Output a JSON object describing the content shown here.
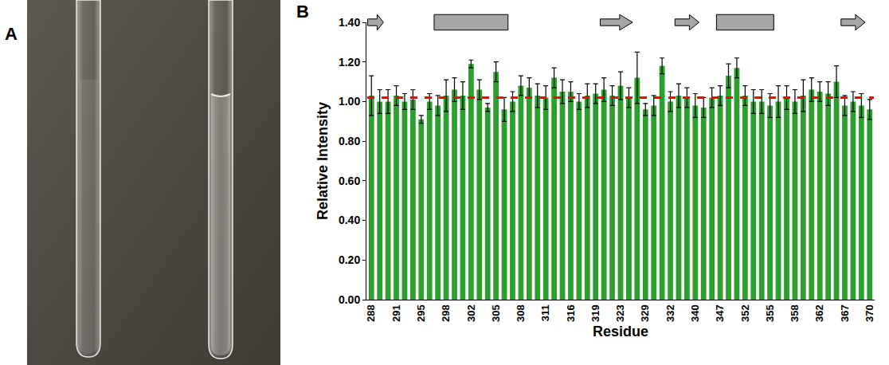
{
  "panel_labels": [
    "A",
    "B"
  ],
  "chart_data": {
    "type": "bar",
    "x_label": "Residue",
    "y_label": "Relative Intensity",
    "categories": [
      "288",
      null,
      null,
      "291",
      null,
      null,
      "295",
      null,
      null,
      "298",
      null,
      null,
      "302",
      null,
      null,
      "305",
      null,
      null,
      "308",
      null,
      null,
      "311",
      null,
      null,
      "316",
      null,
      null,
      "319",
      null,
      null,
      "323",
      null,
      null,
      "329",
      null,
      null,
      "332",
      null,
      null,
      "340",
      null,
      null,
      "347",
      null,
      null,
      "352",
      null,
      null,
      "355",
      null,
      null,
      "358",
      null,
      null,
      "362",
      null,
      null,
      "367",
      null,
      null,
      "370"
    ],
    "values": [
      1.03,
      1.0,
      1.0,
      1.03,
      1.0,
      1.01,
      0.91,
      1.0,
      0.98,
      1.03,
      1.06,
      1.03,
      1.19,
      1.06,
      0.97,
      1.15,
      0.96,
      1.0,
      1.08,
      1.07,
      1.03,
      1.02,
      1.12,
      1.05,
      1.05,
      1.0,
      1.03,
      1.04,
      1.06,
      1.03,
      1.08,
      1.02,
      1.12,
      0.96,
      0.98,
      1.18,
      1.0,
      1.03,
      1.02,
      0.98,
      0.97,
      1.02,
      1.03,
      1.13,
      1.17,
      1.03,
      1.0,
      1.0,
      0.98,
      1.0,
      1.02,
      1.0,
      1.03,
      1.06,
      1.05,
      1.04,
      1.1,
      0.98,
      1.0,
      0.98,
      0.96
    ],
    "errors": [
      0.1,
      0.06,
      0.06,
      0.05,
      0.04,
      0.05,
      0.02,
      0.04,
      0.05,
      0.08,
      0.06,
      0.07,
      0.02,
      0.05,
      0.02,
      0.05,
      0.06,
      0.05,
      0.05,
      0.05,
      0.06,
      0.06,
      0.05,
      0.06,
      0.05,
      0.04,
      0.06,
      0.05,
      0.06,
      0.05,
      0.07,
      0.05,
      0.13,
      0.03,
      0.05,
      0.04,
      0.05,
      0.06,
      0.05,
      0.06,
      0.05,
      0.05,
      0.05,
      0.06,
      0.05,
      0.05,
      0.06,
      0.06,
      0.06,
      0.08,
      0.06,
      0.06,
      0.08,
      0.06,
      0.05,
      0.06,
      0.08,
      0.05,
      0.05,
      0.06,
      0.05
    ],
    "color": "#2ca02c",
    "mean": 1.02,
    "ylim": [
      0,
      1.4
    ],
    "yticks": [
      {
        "value": 0,
        "label": "0.00"
      },
      {
        "value": 0.2,
        "label": "0.20"
      },
      {
        "value": 0.4,
        "label": "0.40"
      },
      {
        "value": 0.6,
        "label": "0.60"
      },
      {
        "value": 0.8,
        "label": "0.80"
      },
      {
        "value": 1.0,
        "label": "1.00"
      },
      {
        "value": 1.2,
        "label": "1.20"
      },
      {
        "value": 1.4,
        "label": "1.40"
      }
    ],
    "secondary_structure": [
      {
        "type": "strand",
        "start": 0,
        "end": 1
      },
      {
        "type": "helix",
        "start": 8,
        "end": 16
      },
      {
        "type": "strand",
        "start": 28,
        "end": 31
      },
      {
        "type": "strand",
        "start": 37,
        "end": 39
      },
      {
        "type": "helix",
        "start": 42,
        "end": 48
      },
      {
        "type": "strand",
        "start": 57,
        "end": 59
      }
    ],
    "grid": false
  }
}
